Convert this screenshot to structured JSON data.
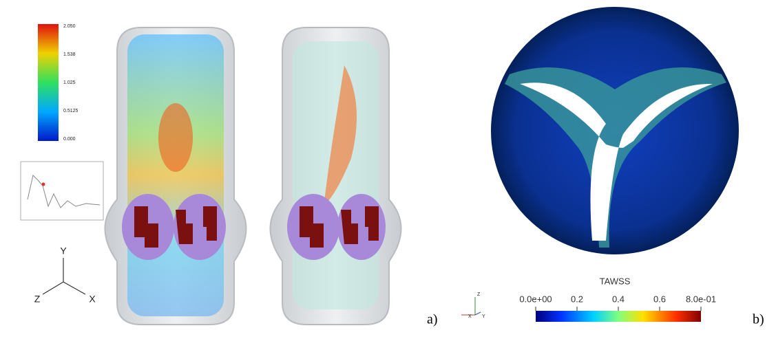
{
  "panel_a": {
    "label": "a)",
    "colorbar": {
      "labels": [
        "2.050",
        "1.538",
        "1.025",
        "0.5125",
        "0.000"
      ]
    },
    "axes": {
      "y": "Y",
      "z": "Z",
      "x": "X"
    }
  },
  "panel_b": {
    "label": "b)",
    "colorbar": {
      "title": "TAWSS",
      "labels": [
        "0.0e+00",
        "0.2",
        "0.4",
        "0.6",
        "8.0e-01"
      ]
    },
    "axes": {
      "z": "Z",
      "x": "X",
      "y": "Y"
    }
  }
}
